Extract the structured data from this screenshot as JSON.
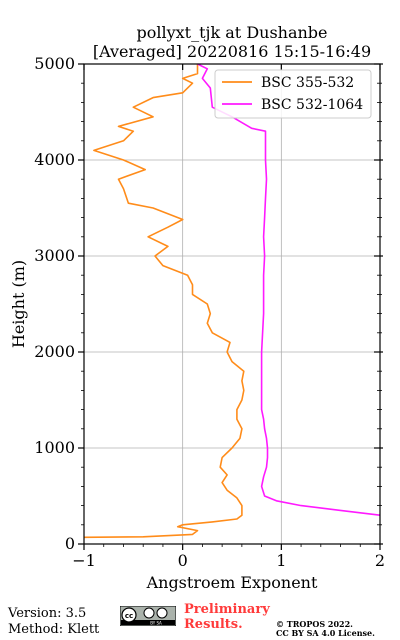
{
  "title_line1": "pollyxt_tjk at Dushanbe",
  "title_line2": "[Averaged] 20220816 15:15-16:49",
  "footer": {
    "version": "Version: 3.5",
    "method": "Method: Klett",
    "preliminary": "Preliminary Results.",
    "copyright_line1": "© TROPOS 2022.",
    "copyright_line2": "CC BY SA 4.0 License."
  },
  "badge": {
    "icon": "cc-by-sa-icon",
    "left": "cc",
    "right": "BY SA"
  },
  "chart_data": {
    "type": "line",
    "title": "pollyxt_tjk at Dushanbe [Averaged] 20220816 15:15-16:49",
    "xlabel": "Angstroem Exponent",
    "ylabel": "Height (m)",
    "xlim": [
      -1,
      2
    ],
    "ylim": [
      0,
      5000
    ],
    "xticks": [
      -1,
      0,
      1,
      2
    ],
    "xtick_labels": [
      "−1",
      "0",
      "1",
      "2"
    ],
    "yticks": [
      0,
      1000,
      2000,
      3000,
      4000,
      5000
    ],
    "ytick_labels": [
      "0",
      "1000",
      "2000",
      "3000",
      "4000",
      "5000"
    ],
    "grid": true,
    "legend_position": "top-right",
    "series": [
      {
        "name": "BSC 355-532",
        "color": "#ff8c1a",
        "points": [
          [
            -1.0,
            70
          ],
          [
            -0.4,
            75
          ],
          [
            0.1,
            100
          ],
          [
            0.15,
            140
          ],
          [
            -0.05,
            180
          ],
          [
            0.0,
            200
          ],
          [
            0.3,
            230
          ],
          [
            0.55,
            260
          ],
          [
            0.6,
            300
          ],
          [
            0.6,
            400
          ],
          [
            0.55,
            480
          ],
          [
            0.45,
            560
          ],
          [
            0.4,
            640
          ],
          [
            0.45,
            720
          ],
          [
            0.38,
            800
          ],
          [
            0.4,
            900
          ],
          [
            0.5,
            1000
          ],
          [
            0.58,
            1100
          ],
          [
            0.6,
            1200
          ],
          [
            0.55,
            1300
          ],
          [
            0.55,
            1400
          ],
          [
            0.6,
            1500
          ],
          [
            0.62,
            1600
          ],
          [
            0.6,
            1700
          ],
          [
            0.62,
            1800
          ],
          [
            0.5,
            1900
          ],
          [
            0.45,
            2000
          ],
          [
            0.48,
            2100
          ],
          [
            0.3,
            2200
          ],
          [
            0.25,
            2300
          ],
          [
            0.28,
            2400
          ],
          [
            0.25,
            2500
          ],
          [
            0.1,
            2600
          ],
          [
            0.1,
            2700
          ],
          [
            0.05,
            2800
          ],
          [
            -0.2,
            2900
          ],
          [
            -0.28,
            3000
          ],
          [
            -0.15,
            3100
          ],
          [
            -0.35,
            3200
          ],
          [
            -0.15,
            3300
          ],
          [
            0.0,
            3380
          ],
          [
            -0.3,
            3500
          ],
          [
            -0.55,
            3550
          ],
          [
            -0.6,
            3700
          ],
          [
            -0.65,
            3800
          ],
          [
            -0.38,
            3900
          ],
          [
            -0.6,
            4000
          ],
          [
            -0.9,
            4100
          ],
          [
            -0.6,
            4200
          ],
          [
            -0.5,
            4300
          ],
          [
            -0.65,
            4350
          ],
          [
            -0.3,
            4450
          ],
          [
            -0.5,
            4550
          ],
          [
            -0.3,
            4650
          ],
          [
            0.0,
            4700
          ],
          [
            0.1,
            4800
          ],
          [
            0.0,
            4850
          ],
          [
            0.15,
            4900
          ],
          [
            0.15,
            5000
          ]
        ]
      },
      {
        "name": "BSC 532-1064",
        "color": "#ff1aff",
        "points": [
          [
            2.0,
            300
          ],
          [
            1.6,
            350
          ],
          [
            1.2,
            400
          ],
          [
            0.95,
            450
          ],
          [
            0.83,
            500
          ],
          [
            0.8,
            600
          ],
          [
            0.82,
            700
          ],
          [
            0.85,
            800
          ],
          [
            0.86,
            900
          ],
          [
            0.86,
            1000
          ],
          [
            0.85,
            1100
          ],
          [
            0.83,
            1200
          ],
          [
            0.82,
            1300
          ],
          [
            0.8,
            1400
          ],
          [
            0.8,
            1500
          ],
          [
            0.8,
            1600
          ],
          [
            0.8,
            1800
          ],
          [
            0.8,
            2000
          ],
          [
            0.81,
            2200
          ],
          [
            0.82,
            2400
          ],
          [
            0.82,
            2600
          ],
          [
            0.82,
            2800
          ],
          [
            0.83,
            3000
          ],
          [
            0.82,
            3200
          ],
          [
            0.83,
            3400
          ],
          [
            0.84,
            3600
          ],
          [
            0.85,
            3800
          ],
          [
            0.84,
            4000
          ],
          [
            0.84,
            4200
          ],
          [
            0.84,
            4300
          ],
          [
            0.7,
            4330
          ],
          [
            0.5,
            4450
          ],
          [
            0.3,
            4550
          ],
          [
            0.28,
            4750
          ],
          [
            0.2,
            4850
          ],
          [
            0.25,
            4950
          ],
          [
            0.15,
            5000
          ]
        ]
      }
    ]
  }
}
